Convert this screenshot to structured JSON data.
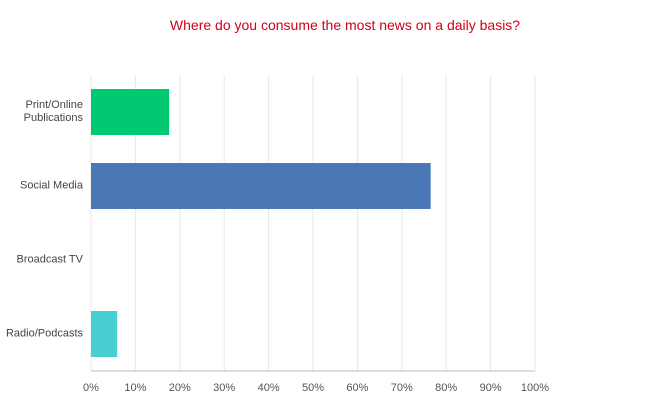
{
  "chart_data": {
    "type": "hbar",
    "title": "Where do you consume the most news on a daily basis?",
    "categories": [
      "Print/Online Publications",
      "Social Media",
      "Broadcast TV",
      "Radio/Podcasts"
    ],
    "values": [
      17.6,
      76.5,
      0,
      5.9
    ],
    "colors": [
      "#00c971",
      "#4a78b6",
      "#3fa9f5",
      "#48cfd2"
    ],
    "xlim": [
      0,
      100
    ],
    "xticks": [
      {
        "value": 0,
        "label": "0%"
      },
      {
        "value": 10,
        "label": "10%"
      },
      {
        "value": 20,
        "label": "20%"
      },
      {
        "value": 30,
        "label": "30%"
      },
      {
        "value": 40,
        "label": "40%"
      },
      {
        "value": 50,
        "label": "50%"
      },
      {
        "value": 60,
        "label": "60%"
      },
      {
        "value": 70,
        "label": "70%"
      },
      {
        "value": 80,
        "label": "80%"
      },
      {
        "value": 90,
        "label": "90%"
      },
      {
        "value": 100,
        "label": "100%"
      }
    ],
    "grid": true
  }
}
